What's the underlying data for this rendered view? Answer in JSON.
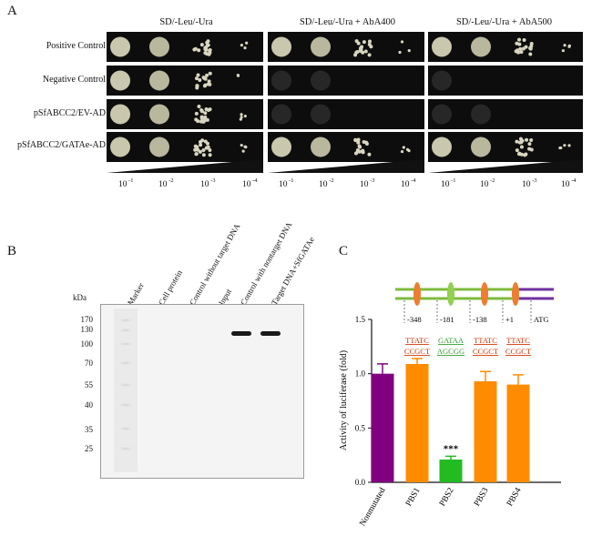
{
  "panels": {
    "a": "A",
    "b": "B",
    "c": "C"
  },
  "panelA": {
    "conditions": [
      "SD/-Leu/-Ura",
      "SD/-Leu/-Ura + AbA400",
      "SD/-Leu/-Ura + AbA500"
    ],
    "rows": [
      "Positive Control",
      "Negative Control",
      "pSfABCC2/EV-AD",
      "pSfABCC2/GATAe-AD"
    ],
    "dilution_base": "10",
    "dilution_exponents": [
      "-1",
      "-2",
      "-3",
      "-4"
    ],
    "growth": [
      [
        [
          1,
          1,
          1,
          0.5
        ],
        [
          1,
          1,
          0.9,
          0.5
        ],
        [
          1,
          1,
          0.9,
          0.6
        ]
      ],
      [
        [
          1,
          1,
          0.9,
          0.4
        ],
        [
          0.1,
          0.05,
          0,
          0
        ],
        [
          0.1,
          0,
          0,
          0
        ]
      ],
      [
        [
          1,
          1,
          1,
          0.7
        ],
        [
          0.15,
          0.05,
          0,
          0
        ],
        [
          0.1,
          0.05,
          0,
          0
        ]
      ],
      [
        [
          1,
          1,
          1,
          0.6
        ],
        [
          1,
          1,
          0.95,
          0.6
        ],
        [
          1,
          1,
          0.95,
          0.6
        ]
      ]
    ]
  },
  "panelB": {
    "unit": "kDa",
    "mw_markers": [
      "170",
      "130",
      "100",
      "70",
      "55",
      "40",
      "35",
      "25"
    ],
    "lanes": [
      "Marker",
      "Cell protein",
      "Control without target DNA",
      "Input",
      "Control with nontarget DNA",
      "Target DNA+SfGATAe"
    ],
    "band_lanes": [
      "Control with nontarget DNA",
      "Target DNA+SfGATAe"
    ]
  },
  "panelC": {
    "promoter_positions": [
      "-348",
      "-181",
      "-138",
      "+1",
      "ATG"
    ],
    "site_sequences": [
      {
        "line1": "TTATC",
        "line2": "CCGCT",
        "color": "#cc3300"
      },
      {
        "line1": "GATAA",
        "line2": "AGCGG",
        "color": "#2e9a2e"
      },
      {
        "line1": "TTATC",
        "line2": "CCGCT",
        "color": "#cc3300"
      },
      {
        "line1": "TTATC",
        "line2": "CCGCT",
        "color": "#cc3300"
      }
    ],
    "significance": "***",
    "chart_data": {
      "type": "bar",
      "categories": [
        "Nonmutated",
        "PBS1",
        "PBS2",
        "PBS3",
        "PBS4"
      ],
      "values": [
        1.0,
        1.09,
        0.21,
        0.93,
        0.9
      ],
      "errors": [
        0.09,
        0.05,
        0.03,
        0.09,
        0.09
      ],
      "colors": [
        "#800080",
        "#ff8c00",
        "#22bb22",
        "#ff8c00",
        "#ff8c00"
      ],
      "ylabel": "Activity of luciferase (fold)",
      "ylim": [
        0,
        1.5
      ],
      "yticks": [
        "0.0",
        "0.5",
        "1.0",
        "1.5"
      ]
    }
  }
}
